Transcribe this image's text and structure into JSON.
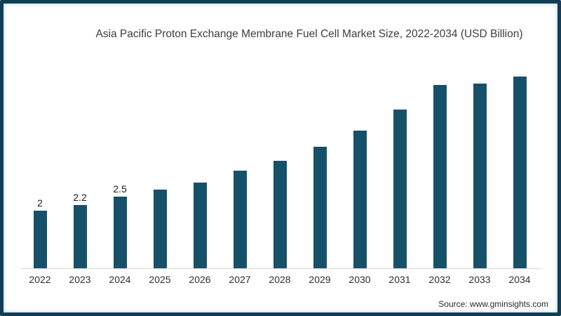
{
  "title": "Asia Pacific Proton Exchange Membrane Fuel Cell Market Size, 2022-2034 (USD Billion)",
  "source": "Source: www.gminsights.com",
  "colors": {
    "bar": "#175169",
    "frame_border": "#113e56",
    "axis_line": "#d6d6d6",
    "title_text": "#3d3d3d"
  },
  "chart_data": {
    "type": "bar",
    "title": "Asia Pacific Proton Exchange Membrane Fuel Cell Market Size, 2022-2034 (USD Billion)",
    "categories": [
      "2022",
      "2023",
      "2024",
      "2025",
      "2026",
      "2027",
      "2028",
      "2029",
      "2030",
      "2031",
      "2032",
      "2033",
      "2034"
    ],
    "values": [
      2,
      2.2,
      2.5,
      2.75,
      3,
      3.4,
      3.75,
      4.25,
      4.8,
      5.55,
      6.4,
      6.45,
      6.7
    ],
    "data_labels": [
      "2",
      "2.2",
      "2.5",
      "",
      "",
      "",
      "",
      "",
      "",
      "",
      "",
      "",
      ""
    ],
    "xlabel": "",
    "ylabel": "",
    "ylim": [
      0,
      7.5
    ],
    "grid": false,
    "legend": false,
    "y_axis_shown": false
  }
}
